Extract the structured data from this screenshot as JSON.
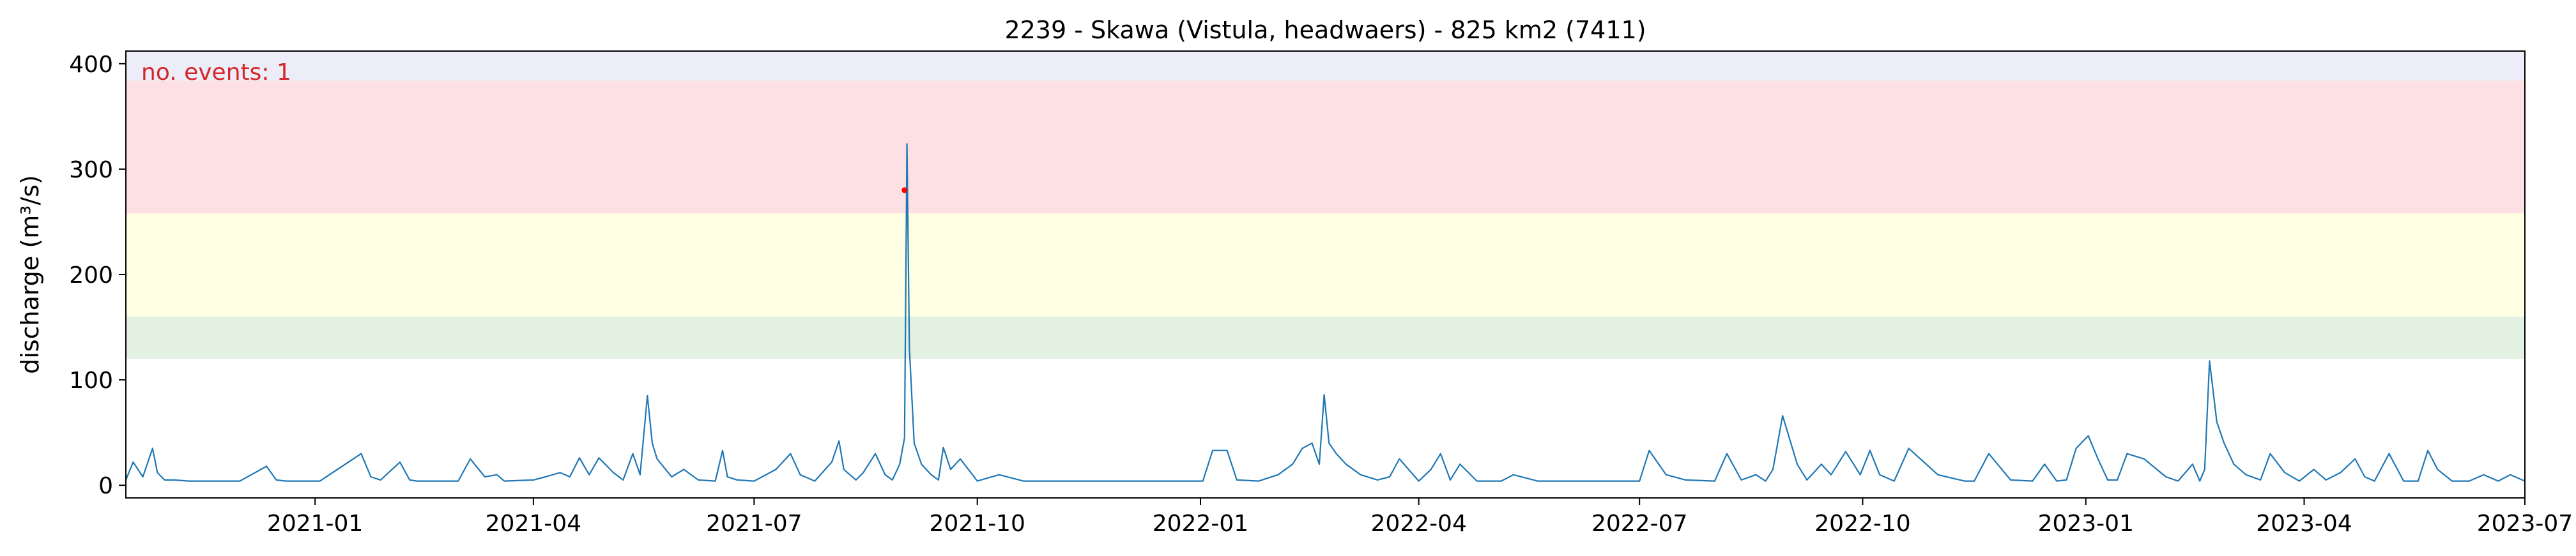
{
  "chart_data": {
    "type": "line",
    "title": "2239 - Skawa (Vistula, headwaers) - 825 km2 (7411)",
    "xlabel": "",
    "ylabel": "discharge (m³/s)",
    "xlim": [
      "2020-10-15",
      "2023-07-01"
    ],
    "ylim": [
      -12,
      412
    ],
    "x_ticks": [
      "2021-01",
      "2021-04",
      "2021-07",
      "2021-10",
      "2022-01",
      "2022-04",
      "2022-07",
      "2022-10",
      "2023-01",
      "2023-04",
      "2023-07"
    ],
    "y_ticks": [
      0,
      100,
      200,
      300,
      400
    ],
    "grid": false,
    "annotation": {
      "text": "no. events: 1",
      "color": "#d62728"
    },
    "bands": [
      {
        "from": 120,
        "to": 160,
        "color": "#e3f1e3"
      },
      {
        "from": 160,
        "to": 258,
        "color": "#fefee3"
      },
      {
        "from": 258,
        "to": 384,
        "color": "#fde0e3"
      },
      {
        "from": 384,
        "to": 412,
        "color": "#ededf9"
      }
    ],
    "series": [
      {
        "color": "#1f77b4",
        "x": [
          "2020-10-15",
          "2020-10-18",
          "2020-10-22",
          "2020-10-26",
          "2020-10-28",
          "2020-10-31",
          "2020-11-04",
          "2020-11-10",
          "2020-12-01",
          "2020-12-12",
          "2020-12-16",
          "2020-12-20",
          "2021-01-03",
          "2021-01-20",
          "2021-01-24",
          "2021-01-28",
          "2021-02-05",
          "2021-02-09",
          "2021-02-12",
          "2021-02-25",
          "2021-03-01",
          "2021-03-06",
          "2021-03-12",
          "2021-03-17",
          "2021-03-20",
          "2021-04-01",
          "2021-04-06",
          "2021-04-12",
          "2021-04-16",
          "2021-04-20",
          "2021-04-24",
          "2021-04-28",
          "2021-05-04",
          "2021-05-08",
          "2021-05-12",
          "2021-05-15",
          "2021-05-18",
          "2021-05-20",
          "2021-05-22",
          "2021-05-28",
          "2021-06-02",
          "2021-06-08",
          "2021-06-15",
          "2021-06-18",
          "2021-06-20",
          "2021-06-24",
          "2021-07-01",
          "2021-07-10",
          "2021-07-16",
          "2021-07-20",
          "2021-07-26",
          "2021-08-02",
          "2021-08-05",
          "2021-08-07",
          "2021-08-12",
          "2021-08-15",
          "2021-08-20",
          "2021-08-24",
          "2021-08-27",
          "2021-08-30",
          "2021-09-01",
          "2021-09-02",
          "2021-09-03",
          "2021-09-05",
          "2021-09-08",
          "2021-09-12",
          "2021-09-15",
          "2021-09-17",
          "2021-09-20",
          "2021-09-24",
          "2021-10-01",
          "2021-10-10",
          "2021-10-20",
          "2021-11-05",
          "2021-12-01",
          "2021-12-20",
          "2022-01-02",
          "2022-01-06",
          "2022-01-12",
          "2022-01-16",
          "2022-01-25",
          "2022-02-02",
          "2022-02-08",
          "2022-02-12",
          "2022-02-16",
          "2022-02-19",
          "2022-02-21",
          "2022-02-23",
          "2022-02-26",
          "2022-03-02",
          "2022-03-08",
          "2022-03-15",
          "2022-03-20",
          "2022-03-24",
          "2022-04-01",
          "2022-04-06",
          "2022-04-10",
          "2022-04-14",
          "2022-04-18",
          "2022-04-25",
          "2022-05-05",
          "2022-05-10",
          "2022-05-20",
          "2022-06-05",
          "2022-06-12",
          "2022-06-20",
          "2022-06-28",
          "2022-07-01",
          "2022-07-05",
          "2022-07-12",
          "2022-07-20",
          "2022-08-01",
          "2022-08-06",
          "2022-08-12",
          "2022-08-18",
          "2022-08-22",
          "2022-08-25",
          "2022-08-29",
          "2022-09-04",
          "2022-09-08",
          "2022-09-14",
          "2022-09-18",
          "2022-09-24",
          "2022-09-30",
          "2022-10-04",
          "2022-10-08",
          "2022-10-14",
          "2022-10-20",
          "2022-11-01",
          "2022-11-12",
          "2022-11-16",
          "2022-11-22",
          "2022-12-01",
          "2022-12-10",
          "2022-12-15",
          "2022-12-20",
          "2022-12-24",
          "2022-12-28",
          "2023-01-02",
          "2023-01-06",
          "2023-01-10",
          "2023-01-14",
          "2023-01-18",
          "2023-01-25",
          "2023-02-03",
          "2023-02-08",
          "2023-02-14",
          "2023-02-17",
          "2023-02-19",
          "2023-02-21",
          "2023-02-24",
          "2023-02-27",
          "2023-03-03",
          "2023-03-08",
          "2023-03-14",
          "2023-03-18",
          "2023-03-24",
          "2023-03-30",
          "2023-04-05",
          "2023-04-10",
          "2023-04-16",
          "2023-04-22",
          "2023-04-26",
          "2023-04-30",
          "2023-05-06",
          "2023-05-12",
          "2023-05-18",
          "2023-05-22",
          "2023-05-26",
          "2023-06-01",
          "2023-06-08",
          "2023-06-14",
          "2023-06-20",
          "2023-06-25",
          "2023-07-01"
        ],
        "y": [
          5,
          22,
          8,
          35,
          12,
          5,
          5,
          4,
          4,
          18,
          5,
          4,
          4,
          30,
          8,
          5,
          22,
          5,
          4,
          4,
          4,
          25,
          8,
          10,
          4,
          5,
          8,
          12,
          8,
          26,
          10,
          26,
          12,
          5,
          30,
          10,
          85,
          40,
          25,
          8,
          15,
          5,
          4,
          33,
          8,
          5,
          4,
          15,
          30,
          10,
          4,
          22,
          42,
          15,
          5,
          12,
          30,
          10,
          5,
          20,
          45,
          324,
          130,
          40,
          20,
          10,
          5,
          36,
          15,
          25,
          4,
          10,
          4,
          4,
          4,
          4,
          4,
          33,
          33,
          5,
          4,
          10,
          20,
          35,
          40,
          20,
          86,
          40,
          30,
          20,
          10,
          5,
          8,
          25,
          4,
          15,
          30,
          5,
          20,
          4,
          4,
          10,
          4,
          4,
          4,
          4,
          4,
          4,
          33,
          10,
          5,
          4,
          30,
          5,
          10,
          4,
          15,
          66,
          20,
          5,
          20,
          10,
          32,
          10,
          33,
          10,
          4,
          35,
          10,
          4,
          4,
          30,
          5,
          4,
          20,
          4,
          5,
          35,
          47,
          25,
          5,
          5,
          30,
          25,
          8,
          4,
          20,
          4,
          15,
          118,
          60,
          40,
          20,
          10,
          5,
          30,
          12,
          4,
          15,
          5,
          12,
          25,
          8,
          4,
          30,
          4,
          4,
          33,
          15,
          4,
          4,
          10,
          4,
          10,
          4
        ]
      }
    ],
    "event_points": [
      {
        "x": "2021-09-01",
        "y": 280,
        "color": "#ff0000"
      }
    ]
  }
}
